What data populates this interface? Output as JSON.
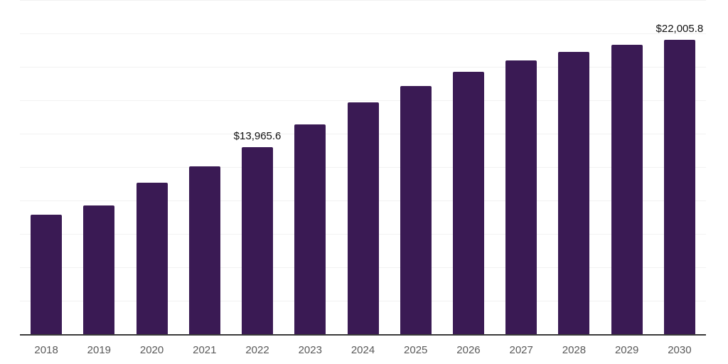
{
  "chart_data": {
    "type": "bar",
    "title": "",
    "xlabel": "",
    "ylabel": "",
    "categories": [
      "2018",
      "2019",
      "2020",
      "2021",
      "2022",
      "2023",
      "2024",
      "2025",
      "2026",
      "2027",
      "2028",
      "2029",
      "2030"
    ],
    "values": [
      8920,
      9640,
      11340,
      12560,
      13965.6,
      15700,
      17330,
      18580,
      19620,
      20470,
      21110,
      21650,
      22005.8
    ],
    "data_labels": [
      null,
      null,
      null,
      null,
      "$13,965.6",
      null,
      null,
      null,
      null,
      null,
      null,
      null,
      "$22,005.8"
    ],
    "ylim": [
      0,
      25000
    ],
    "gridline_interval": 2500,
    "grid": true,
    "legend": false,
    "colors": {
      "bar": "#3a1a54",
      "gridline": "#f2f2f2",
      "axis_line": "#3a3a3a",
      "tick_label": "#595959",
      "data_label": "#111111",
      "background": "#ffffff"
    }
  }
}
